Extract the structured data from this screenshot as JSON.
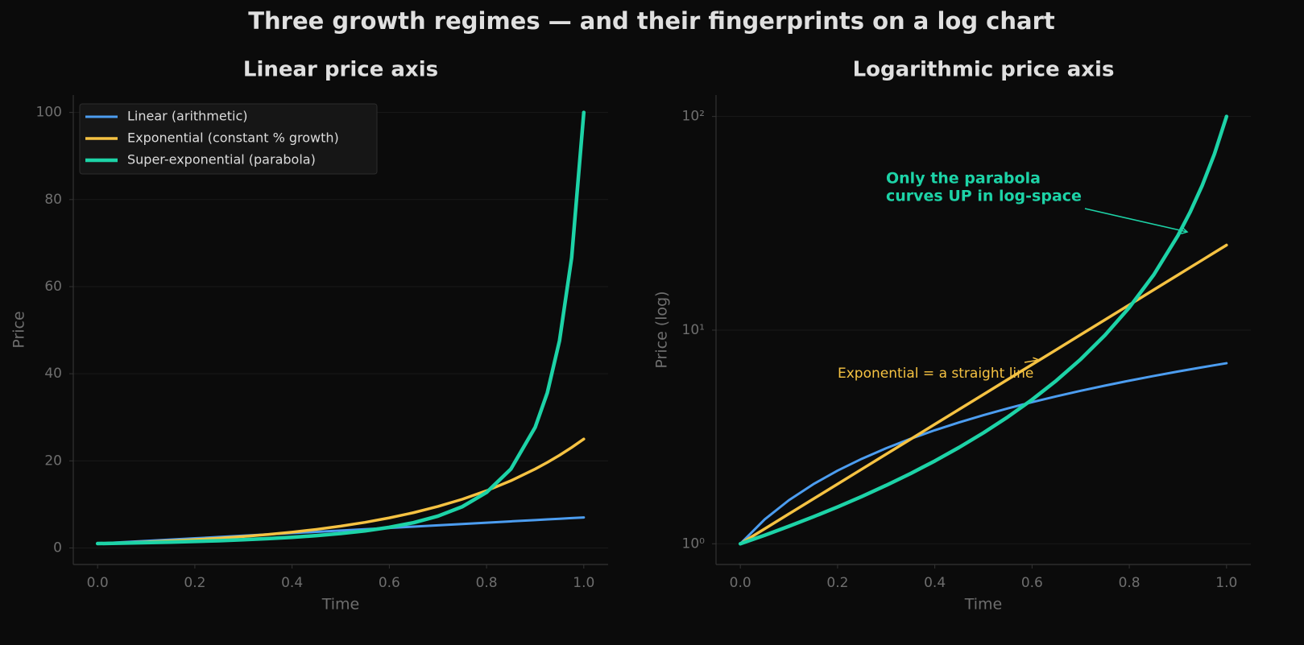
{
  "title": "Three growth regimes — and their fingerprints on a log chart",
  "chart_data": [
    {
      "type": "line",
      "title": "Linear price axis",
      "x_label": "Time",
      "y_label": "Price",
      "x": [
        0,
        0.05,
        0.1,
        0.15,
        0.2,
        0.25,
        0.3,
        0.35,
        0.4,
        0.45,
        0.5,
        0.55,
        0.6,
        0.65,
        0.7,
        0.75,
        0.8,
        0.85,
        0.9,
        0.925,
        0.95,
        0.975,
        1
      ],
      "series": [
        {
          "name": "Linear  (arithmetic)",
          "color": "#4c9df0",
          "values": [
            1,
            1.3,
            1.6,
            1.9,
            2.2,
            2.5,
            2.8,
            3.1,
            3.4,
            3.7,
            4,
            4.3,
            4.6,
            4.9,
            5.2,
            5.5,
            5.8,
            6.1,
            6.4,
            6.55,
            6.7,
            6.85,
            7
          ]
        },
        {
          "name": "Exponential  (constant % growth)",
          "color": "#f5c242",
          "values": [
            1,
            1.175,
            1.38,
            1.621,
            1.904,
            2.236,
            2.626,
            3.085,
            3.624,
            4.256,
            5,
            5.873,
            6.899,
            8.103,
            9.518,
            11.18,
            13.13,
            15.43,
            18.12,
            19.64,
            21.28,
            23.07,
            25
          ]
        },
        {
          "name": "Super-exponential  (parabola)",
          "color": "#1dd3a7",
          "values": [
            1,
            1.096,
            1.208,
            1.337,
            1.487,
            1.665,
            1.877,
            2.131,
            2.441,
            2.825,
            3.306,
            3.921,
            4.726,
            5.806,
            7.305,
            9.467,
            12.76,
            18.11,
            27.7,
            35.64,
            47.56,
            66.64,
            100
          ]
        }
      ],
      "xlim": [
        -0.05,
        1.05
      ],
      "ylim": [
        -3.8,
        104
      ],
      "xticks": [
        {
          "value": 0,
          "label": "0.0"
        },
        0.2,
        0.4,
        0.6,
        0.8,
        {
          "value": 1,
          "label": "1.0"
        }
      ],
      "yticks": [
        0,
        20,
        40,
        60,
        80,
        100
      ],
      "grid": true,
      "legend": "upper left"
    },
    {
      "type": "line",
      "title": "Logarithmic price axis",
      "x_label": "Time",
      "y_label": "Price (log)",
      "log_y": true,
      "x": [
        0,
        0.05,
        0.1,
        0.15,
        0.2,
        0.25,
        0.3,
        0.35,
        0.4,
        0.45,
        0.5,
        0.55,
        0.6,
        0.65,
        0.7,
        0.75,
        0.8,
        0.85,
        0.9,
        0.925,
        0.95,
        0.975,
        1
      ],
      "series": [
        {
          "color": "#4c9df0",
          "values": [
            1,
            1.3,
            1.6,
            1.9,
            2.2,
            2.5,
            2.8,
            3.1,
            3.4,
            3.7,
            4,
            4.3,
            4.6,
            4.9,
            5.2,
            5.5,
            5.8,
            6.1,
            6.4,
            6.55,
            6.7,
            6.85,
            7
          ]
        },
        {
          "color": "#f5c242",
          "values": [
            1,
            1.175,
            1.38,
            1.621,
            1.904,
            2.236,
            2.626,
            3.085,
            3.624,
            4.256,
            5,
            5.873,
            6.899,
            8.103,
            9.518,
            11.18,
            13.13,
            15.43,
            18.12,
            19.64,
            21.28,
            23.07,
            25
          ]
        },
        {
          "color": "#1dd3a7",
          "values": [
            1,
            1.096,
            1.208,
            1.337,
            1.487,
            1.665,
            1.877,
            2.131,
            2.441,
            2.825,
            3.306,
            3.921,
            4.726,
            5.806,
            7.305,
            9.467,
            12.76,
            18.11,
            27.7,
            35.64,
            47.56,
            66.64,
            100
          ]
        }
      ],
      "xlim": [
        -0.05,
        1.05
      ],
      "ylim": [
        0.8,
        126
      ],
      "xticks": [
        {
          "value": 0,
          "label": "0.0"
        },
        0.2,
        0.4,
        0.6,
        0.8,
        {
          "value": 1,
          "label": "1.0"
        }
      ],
      "yticks": [
        {
          "value": 1,
          "label": "10⁰"
        },
        {
          "value": 10,
          "label": "10¹"
        },
        {
          "value": 100,
          "label": "10²"
        }
      ],
      "grid": true,
      "annotations": [
        {
          "text": [
            "Only the parabola",
            "curves UP in log-space"
          ],
          "color": "#1dd3a7"
        },
        {
          "text": [
            "Exponential = a straight line"
          ],
          "color": "#f5c242"
        }
      ]
    }
  ]
}
